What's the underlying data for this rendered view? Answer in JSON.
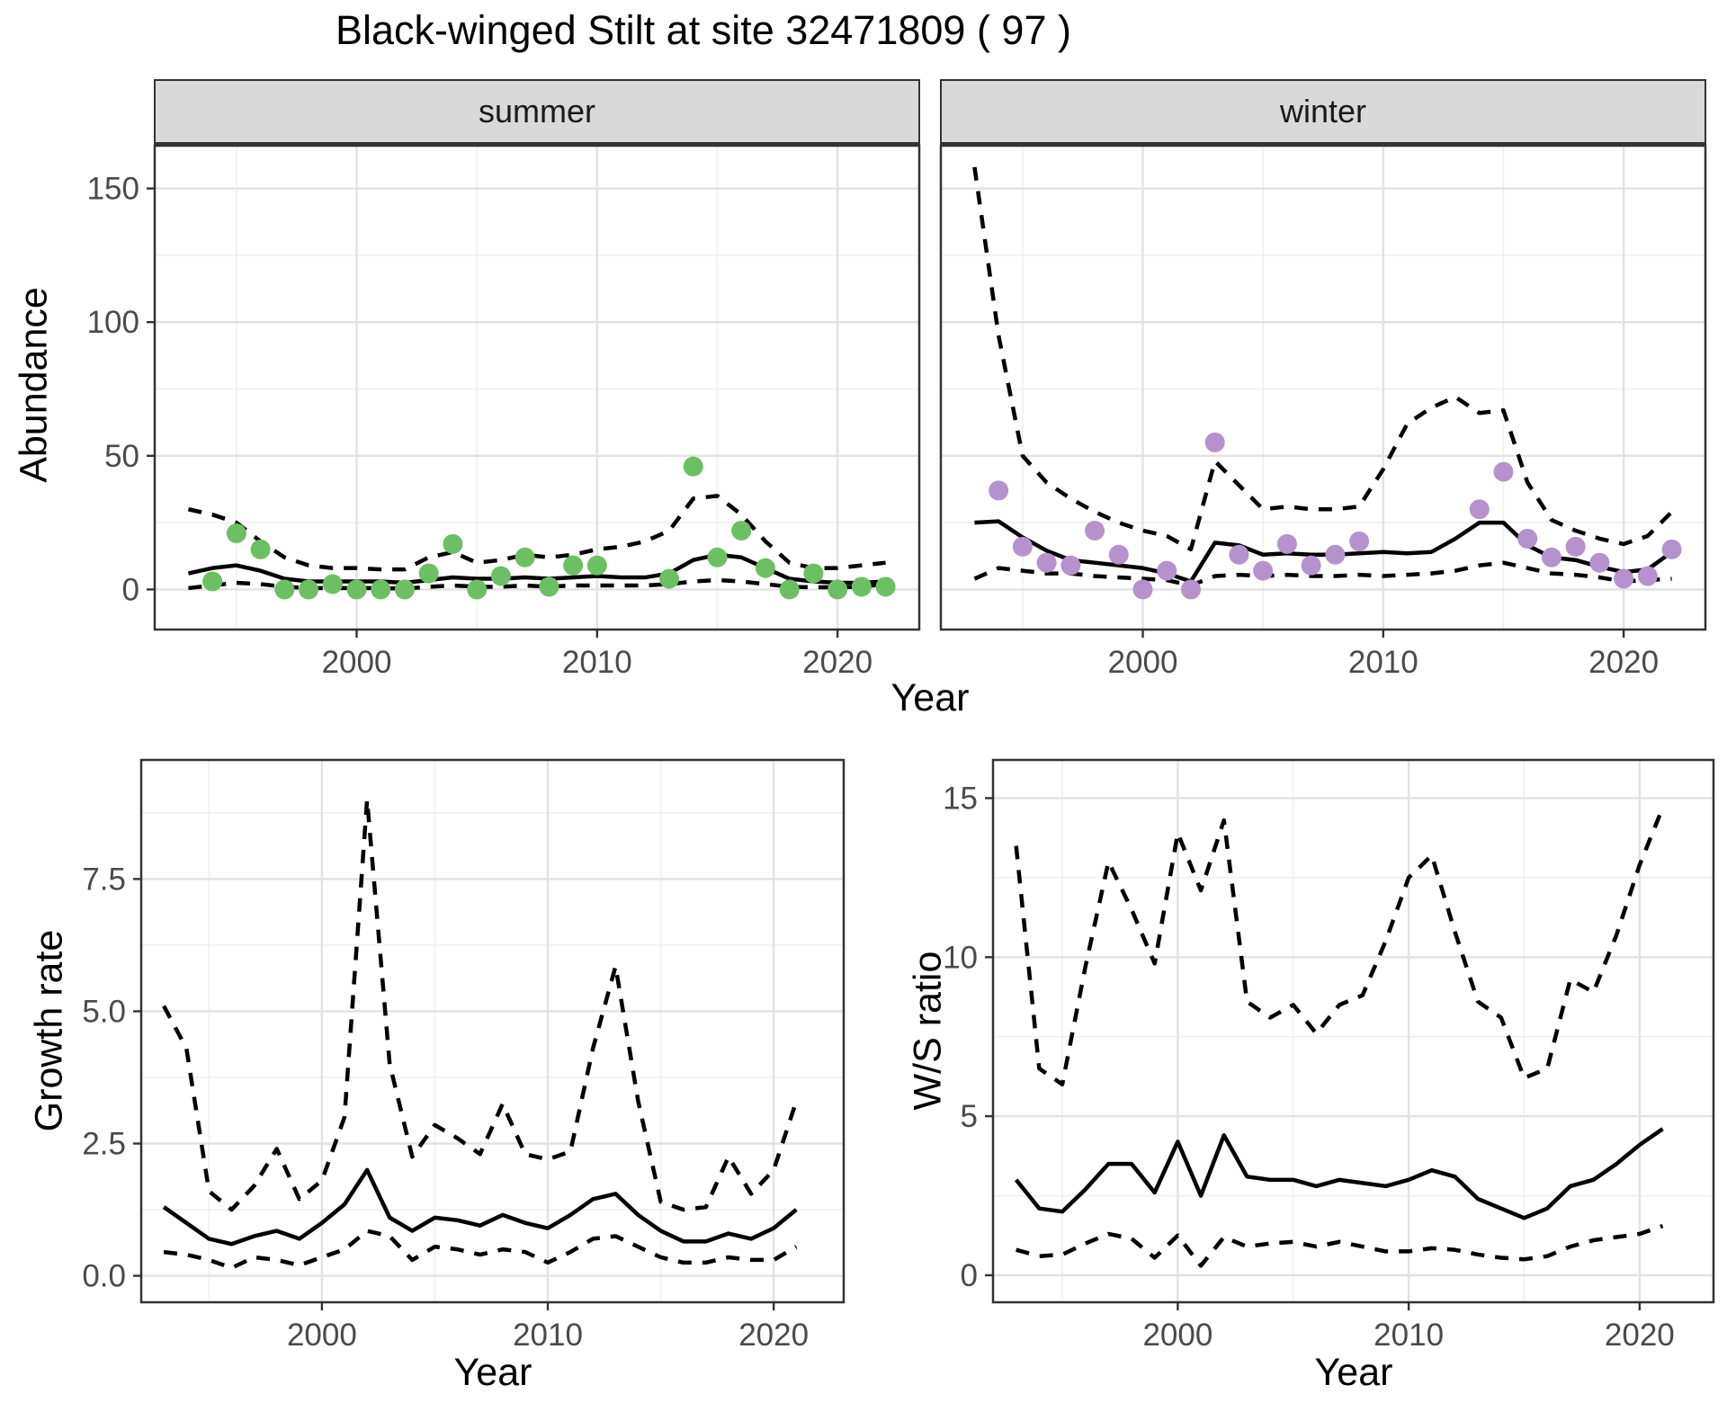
{
  "title": "Black-winged Stilt at site 32471809 ( 97 )",
  "colors": {
    "summer_point": "#6cbf63",
    "winter_point": "#b592cb",
    "line": "#000000",
    "strip_bg": "#d9d9d9",
    "panel_border": "#333333",
    "grid_major": "#e2e2e2",
    "grid_minor": "#f0f0f0",
    "tick_text": "#4a4a4a"
  },
  "chart_data": [
    {
      "id": "abundance_summer",
      "type": "line",
      "facet": "summer",
      "title": "summer",
      "xlabel": "Year",
      "ylabel": "Abundance",
      "xlim": [
        1991.6,
        2023.4
      ],
      "ylim": [
        -15,
        166
      ],
      "x_ticks": [
        2000,
        2010,
        2020
      ],
      "y_ticks": [
        0,
        50,
        100,
        150
      ],
      "y_tick_labels": [
        "0",
        "50",
        "100",
        "150"
      ],
      "points_years": [
        1994,
        1995,
        1996,
        1997,
        1998,
        1999,
        2000,
        2001,
        2002,
        2003,
        2004,
        2005,
        2006,
        2007,
        2008,
        2009,
        2010,
        2013,
        2014,
        2015,
        2016,
        2017,
        2018,
        2019,
        2020,
        2021,
        2022
      ],
      "points_values": [
        3,
        21,
        15,
        0,
        0,
        2,
        0,
        0,
        0,
        6,
        17,
        0,
        5,
        12,
        1,
        9,
        9,
        4,
        46,
        12,
        22,
        8,
        0,
        6,
        0,
        1,
        1
      ],
      "fit_years": [
        1993,
        1994,
        1995,
        1996,
        1997,
        1998,
        1999,
        2000,
        2001,
        2002,
        2003,
        2004,
        2005,
        2006,
        2007,
        2008,
        2009,
        2010,
        2011,
        2012,
        2013,
        2014,
        2015,
        2016,
        2017,
        2018,
        2019,
        2020,
        2021,
        2022
      ],
      "median": [
        6,
        8,
        9,
        7,
        4,
        3,
        3,
        3,
        3,
        2.5,
        3.5,
        4.5,
        4,
        4,
        4.5,
        4,
        4.5,
        5,
        4.5,
        4.5,
        6,
        11,
        13,
        12,
        8,
        4,
        3,
        2.5,
        2.5,
        3
      ],
      "upper": [
        30,
        28,
        25,
        18,
        12,
        9,
        8,
        8,
        7.5,
        7.5,
        12,
        14,
        10,
        11,
        13,
        12,
        13,
        15,
        16,
        18,
        22,
        34,
        35,
        28,
        18,
        10,
        8,
        8,
        9,
        10
      ],
      "lower": [
        0.5,
        1.5,
        2.5,
        2,
        1,
        0.5,
        0.5,
        0.5,
        0.5,
        0.3,
        1,
        1.5,
        1,
        1,
        1.5,
        1,
        1.5,
        1.5,
        1.5,
        1.5,
        2,
        3,
        3.5,
        3,
        2,
        1,
        0.8,
        0.8,
        1,
        2
      ]
    },
    {
      "id": "abundance_winter",
      "type": "line",
      "facet": "winter",
      "title": "winter",
      "xlabel": "Year",
      "ylabel": "Abundance",
      "xlim": [
        1991.6,
        2023.4
      ],
      "ylim": [
        -15,
        166
      ],
      "x_ticks": [
        2000,
        2010,
        2020
      ],
      "y_ticks": [
        0,
        50,
        100,
        150
      ],
      "y_tick_labels": [
        "0",
        "50",
        "100",
        "150"
      ],
      "points_years": [
        1994,
        1995,
        1996,
        1997,
        1998,
        1999,
        2000,
        2001,
        2002,
        2003,
        2004,
        2005,
        2006,
        2007,
        2008,
        2009,
        2014,
        2015,
        2016,
        2017,
        2018,
        2019,
        2020,
        2021,
        2022
      ],
      "points_values": [
        37,
        16,
        10,
        9,
        22,
        13,
        0,
        7,
        0,
        55,
        13,
        7,
        17,
        9,
        13,
        18,
        30,
        44,
        19,
        12,
        16,
        10,
        4,
        5,
        15
      ],
      "fit_years": [
        1993,
        1994,
        1995,
        1996,
        1997,
        1998,
        1999,
        2000,
        2001,
        2002,
        2003,
        2004,
        2005,
        2006,
        2007,
        2008,
        2009,
        2010,
        2011,
        2012,
        2013,
        2014,
        2015,
        2016,
        2017,
        2018,
        2019,
        2020,
        2021,
        2022
      ],
      "median": [
        25,
        25.5,
        19.5,
        14.5,
        11,
        10,
        9,
        8,
        6,
        3,
        17.5,
        16.5,
        13,
        13.5,
        13,
        13,
        13.5,
        14,
        13.5,
        14,
        19,
        25,
        25,
        16.5,
        12,
        11,
        8.5,
        6.5,
        7.5,
        14
      ],
      "upper": [
        158,
        95,
        50,
        40,
        34,
        29,
        25,
        22,
        20,
        15,
        48,
        39,
        30,
        31,
        30,
        30,
        31,
        45,
        62,
        68,
        72,
        66,
        67,
        40,
        26,
        22,
        19,
        17,
        20,
        29
      ],
      "lower": [
        4,
        8,
        7,
        6,
        6,
        5,
        4.5,
        4,
        3.5,
        1.5,
        5,
        5.5,
        5,
        5.5,
        5,
        5,
        5.5,
        5,
        5.5,
        6,
        7,
        9,
        10,
        8,
        6,
        5.5,
        4.5,
        3,
        3.5,
        4
      ]
    },
    {
      "id": "growth_rate",
      "type": "line",
      "title": "Growth rate",
      "xlabel": "Year",
      "ylabel": "Growth rate",
      "xlim": [
        1992.0,
        2023.1
      ],
      "ylim": [
        -0.5,
        9.75
      ],
      "x_ticks": [
        2000,
        2010,
        2020
      ],
      "y_ticks": [
        0,
        2.5,
        5,
        7.5
      ],
      "y_tick_labels": [
        "0.0",
        "2.5",
        "5.0",
        "7.5"
      ],
      "fit_years": [
        1993,
        1994,
        1995,
        1996,
        1997,
        1998,
        1999,
        2000,
        2001,
        2002,
        2003,
        2004,
        2005,
        2006,
        2007,
        2008,
        2009,
        2010,
        2011,
        2012,
        2013,
        2014,
        2015,
        2016,
        2017,
        2018,
        2019,
        2020,
        2021
      ],
      "median": [
        1.3,
        1.0,
        0.7,
        0.6,
        0.75,
        0.85,
        0.7,
        1.0,
        1.35,
        2.0,
        1.1,
        0.85,
        1.1,
        1.05,
        0.95,
        1.15,
        1.0,
        0.9,
        1.15,
        1.45,
        1.55,
        1.15,
        0.85,
        0.65,
        0.65,
        0.8,
        0.7,
        0.9,
        1.25
      ],
      "upper": [
        5.1,
        4.3,
        1.6,
        1.25,
        1.7,
        2.4,
        1.45,
        1.8,
        3.0,
        9.0,
        4.0,
        2.25,
        2.85,
        2.6,
        2.3,
        3.25,
        2.3,
        2.2,
        2.35,
        4.3,
        5.85,
        3.3,
        1.4,
        1.25,
        1.3,
        2.25,
        1.55,
        2.0,
        3.3
      ],
      "lower": [
        0.45,
        0.4,
        0.3,
        0.15,
        0.35,
        0.3,
        0.2,
        0.35,
        0.5,
        0.85,
        0.75,
        0.3,
        0.55,
        0.5,
        0.4,
        0.5,
        0.45,
        0.25,
        0.45,
        0.7,
        0.75,
        0.55,
        0.35,
        0.25,
        0.25,
        0.35,
        0.3,
        0.3,
        0.55
      ]
    },
    {
      "id": "ws_ratio",
      "type": "line",
      "title": "W/S ratio",
      "xlabel": "Year",
      "ylabel": "W/S ratio",
      "xlim": [
        1992.0,
        2023.2
      ],
      "ylim": [
        -0.85,
        16.2
      ],
      "x_ticks": [
        2000,
        2010,
        2020
      ],
      "y_ticks": [
        0,
        5,
        10,
        15
      ],
      "y_tick_labels": [
        "0",
        "5",
        "10",
        "15"
      ],
      "fit_years": [
        1993,
        1994,
        1995,
        1996,
        1997,
        1998,
        1999,
        2000,
        2001,
        2002,
        2003,
        2004,
        2005,
        2006,
        2007,
        2008,
        2009,
        2010,
        2011,
        2012,
        2013,
        2014,
        2015,
        2016,
        2017,
        2018,
        2019,
        2020,
        2021
      ],
      "median": [
        3.0,
        2.1,
        2.0,
        2.7,
        3.5,
        3.5,
        2.6,
        4.2,
        2.5,
        4.4,
        3.1,
        3.0,
        3.0,
        2.8,
        3.0,
        2.9,
        2.8,
        3.0,
        3.3,
        3.1,
        2.4,
        2.1,
        1.8,
        2.1,
        2.8,
        3.0,
        3.5,
        4.1,
        4.6
      ],
      "upper": [
        13.5,
        6.5,
        6.0,
        9.7,
        13.0,
        11.5,
        9.8,
        13.9,
        12.1,
        14.3,
        8.6,
        8.1,
        8.5,
        7.6,
        8.5,
        8.8,
        10.5,
        12.5,
        13.2,
        10.8,
        8.6,
        8.1,
        6.2,
        6.5,
        9.3,
        8.9,
        10.7,
        12.9,
        14.7
      ],
      "lower": [
        0.8,
        0.6,
        0.65,
        1.0,
        1.3,
        1.15,
        0.55,
        1.25,
        0.3,
        1.2,
        0.9,
        1.0,
        1.05,
        0.9,
        1.05,
        0.9,
        0.75,
        0.75,
        0.85,
        0.8,
        0.65,
        0.55,
        0.5,
        0.6,
        0.9,
        1.1,
        1.2,
        1.3,
        1.55
      ]
    }
  ]
}
